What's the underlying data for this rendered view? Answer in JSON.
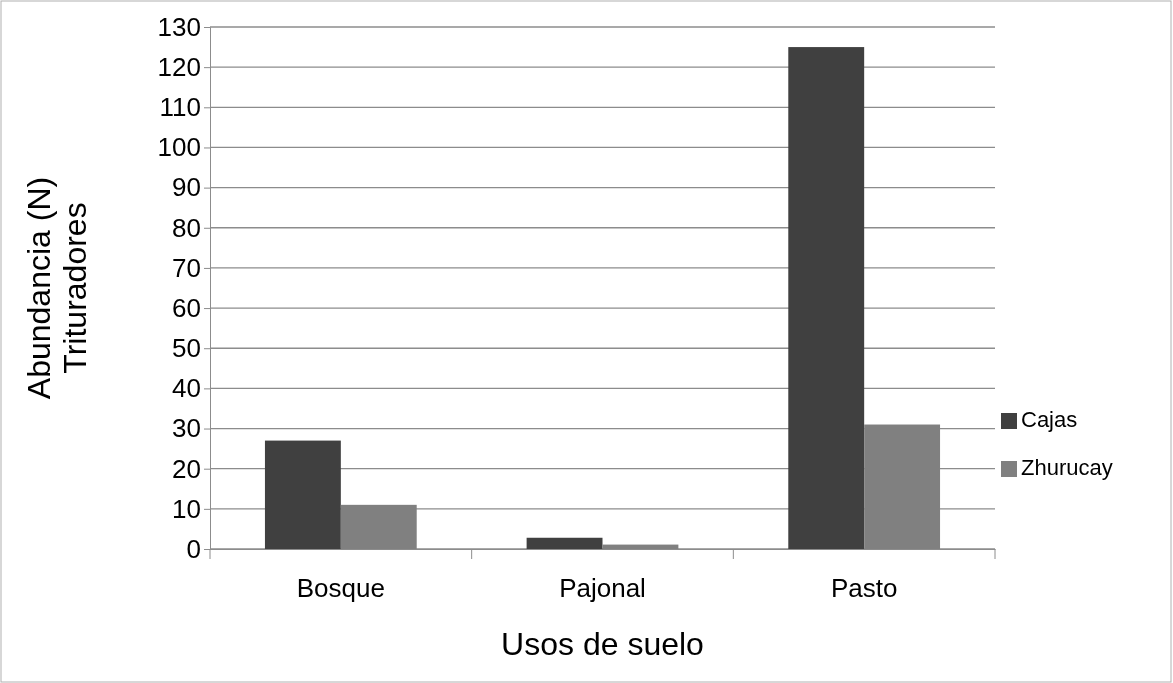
{
  "chart_data": {
    "type": "bar",
    "xlabel": "Usos de suelo",
    "ylabel": "Abundancia (N)\nTrituradores",
    "categories": [
      "Bosque",
      "Pajonal",
      "Pasto"
    ],
    "series": [
      {
        "name": "Cajas",
        "color": "#404040",
        "values": [
          27,
          2.8,
          125
        ]
      },
      {
        "name": "Zhurucay",
        "color": "#808080",
        "values": [
          11,
          1.1,
          31
        ]
      }
    ],
    "ylim": [
      0,
      130
    ],
    "yticks": [
      0,
      10,
      20,
      30,
      40,
      50,
      60,
      70,
      80,
      90,
      100,
      110,
      120,
      130
    ],
    "grid": "y",
    "legend": "right"
  }
}
